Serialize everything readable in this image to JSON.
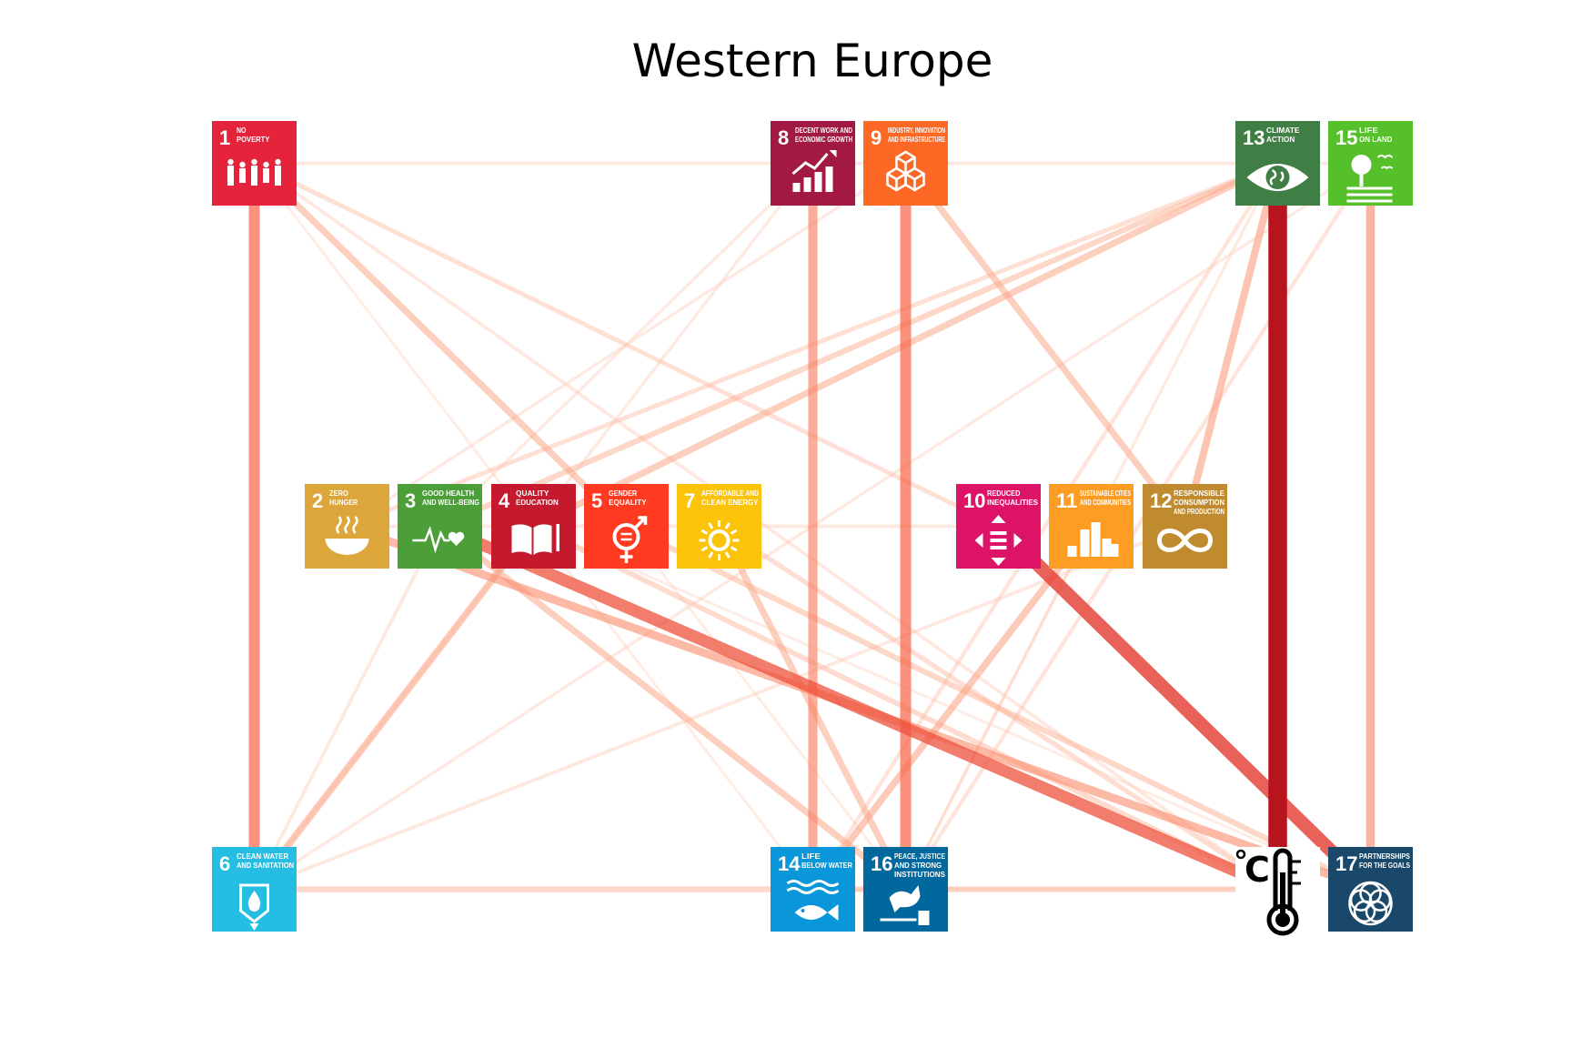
{
  "title": "Western Europe",
  "nodes": [
    {
      "id": "1",
      "num": "1",
      "lines": [
        "NO",
        "POVERTY"
      ],
      "color": "#e5243b",
      "icon": "family-icon"
    },
    {
      "id": "2",
      "num": "2",
      "lines": [
        "ZERO",
        "HUNGER"
      ],
      "color": "#dda63a",
      "icon": "bowl-icon"
    },
    {
      "id": "3",
      "num": "3",
      "lines": [
        "GOOD HEALTH",
        "AND WELL-BEING"
      ],
      "color": "#4c9f38",
      "icon": "heartbeat-icon"
    },
    {
      "id": "4",
      "num": "4",
      "lines": [
        "QUALITY",
        "EDUCATION"
      ],
      "color": "#c5192d",
      "icon": "book-icon"
    },
    {
      "id": "5",
      "num": "5",
      "lines": [
        "GENDER",
        "EQUALITY"
      ],
      "color": "#ff3a21",
      "icon": "gender-icon"
    },
    {
      "id": "6",
      "num": "6",
      "lines": [
        "CLEAN WATER",
        "AND SANITATION"
      ],
      "color": "#26bde2",
      "icon": "water-drop-icon"
    },
    {
      "id": "7",
      "num": "7",
      "lines": [
        "AFFORDABLE AND",
        "CLEAN ENERGY"
      ],
      "color": "#fcc30b",
      "icon": "sun-icon"
    },
    {
      "id": "8",
      "num": "8",
      "lines": [
        "DECENT WORK AND",
        "ECONOMIC GROWTH"
      ],
      "color": "#a21942",
      "icon": "growth-chart-icon"
    },
    {
      "id": "9",
      "num": "9",
      "lines": [
        "INDUSTRY, INNOVATION",
        "AND INFRASTRUCTURE"
      ],
      "color": "#fd6925",
      "icon": "cubes-icon"
    },
    {
      "id": "10",
      "num": "10",
      "lines": [
        "REDUCED",
        "INEQUALITIES"
      ],
      "color": "#dd1367",
      "icon": "equality-arrows-icon"
    },
    {
      "id": "11",
      "num": "11",
      "lines": [
        "SUSTAINABLE CITIES",
        "AND COMMUNITIES"
      ],
      "color": "#fd9d24",
      "icon": "city-icon"
    },
    {
      "id": "12",
      "num": "12",
      "lines": [
        "RESPONSIBLE",
        "CONSUMPTION",
        "AND PRODUCTION"
      ],
      "color": "#bf8b2e",
      "icon": "infinity-icon"
    },
    {
      "id": "13",
      "num": "13",
      "lines": [
        "CLIMATE",
        "ACTION"
      ],
      "color": "#3f7e44",
      "icon": "eye-globe-icon"
    },
    {
      "id": "14",
      "num": "14",
      "lines": [
        "LIFE",
        "BELOW WATER"
      ],
      "color": "#0a97d9",
      "icon": "fish-icon"
    },
    {
      "id": "15",
      "num": "15",
      "lines": [
        "LIFE",
        "ON LAND"
      ],
      "color": "#56c02b",
      "icon": "tree-icon"
    },
    {
      "id": "16",
      "num": "16",
      "lines": [
        "PEACE, JUSTICE",
        "AND STRONG",
        "INSTITUTIONS"
      ],
      "color": "#00689d",
      "icon": "dove-gavel-icon"
    },
    {
      "id": "17",
      "num": "17",
      "lines": [
        "PARTNERSHIPS",
        "FOR THE GOALS"
      ],
      "color": "#19486a",
      "icon": "flower-icon"
    },
    {
      "id": "T",
      "num": "",
      "lines": [],
      "color": "#ffffff",
      "icon": "thermometer-celsius-icon"
    }
  ],
  "edges": [
    {
      "a": "13",
      "b": "T",
      "w": 1.0
    },
    {
      "a": "10",
      "b": "17",
      "w": 0.7
    },
    {
      "a": "3",
      "b": "T",
      "w": 0.62
    },
    {
      "a": "9",
      "b": "16",
      "w": 0.55
    },
    {
      "a": "1",
      "b": "6",
      "w": 0.55
    },
    {
      "a": "8",
      "b": "14",
      "w": 0.45
    },
    {
      "a": "15",
      "b": "17",
      "w": 0.42
    },
    {
      "a": "12",
      "b": "13",
      "w": 0.35
    },
    {
      "a": "2",
      "b": "17",
      "w": 0.4
    },
    {
      "a": "4",
      "b": "6",
      "w": 0.32
    },
    {
      "a": "11",
      "b": "14",
      "w": 0.32
    },
    {
      "a": "1",
      "b": "5",
      "w": 0.3
    },
    {
      "a": "9",
      "b": "12",
      "w": 0.3
    },
    {
      "a": "3",
      "b": "16",
      "w": 0.3
    },
    {
      "a": "7",
      "b": "16",
      "w": 0.3
    },
    {
      "a": "4",
      "b": "13",
      "w": 0.3
    },
    {
      "a": "3",
      "b": "13",
      "w": 0.25
    },
    {
      "a": "6",
      "b": "T",
      "w": 0.25
    },
    {
      "a": "5",
      "b": "17",
      "w": 0.25
    },
    {
      "a": "4",
      "b": "T",
      "w": 0.22
    },
    {
      "a": "1",
      "b": "10",
      "w": 0.18
    },
    {
      "a": "7",
      "b": "T",
      "w": 0.2
    },
    {
      "a": "2",
      "b": "13",
      "w": 0.18
    },
    {
      "a": "16",
      "b": "15",
      "w": 0.15
    },
    {
      "a": "6",
      "b": "12",
      "w": 0.12
    },
    {
      "a": "1",
      "b": "T",
      "w": 0.12
    },
    {
      "a": "14",
      "b": "13",
      "w": 0.15
    },
    {
      "a": "1",
      "b": "15",
      "w": 0.12
    },
    {
      "a": "3",
      "b": "6",
      "w": 0.12
    },
    {
      "a": "2",
      "b": "10",
      "w": 0.12
    },
    {
      "a": "8",
      "b": "6",
      "w": 0.1
    },
    {
      "a": "8",
      "b": "3",
      "w": 0.1
    },
    {
      "a": "9",
      "b": "2",
      "w": 0.1
    },
    {
      "a": "6",
      "b": "15",
      "w": 0.1
    },
    {
      "a": "16",
      "b": "13",
      "w": 0.1
    },
    {
      "a": "16",
      "b": "11",
      "w": 0.1
    },
    {
      "a": "14",
      "b": "T",
      "w": 0.1
    },
    {
      "a": "1",
      "b": "14",
      "w": 0.08
    },
    {
      "a": "5",
      "b": "16",
      "w": 0.08
    },
    {
      "a": "4",
      "b": "17",
      "w": 0.08
    }
  ]
}
